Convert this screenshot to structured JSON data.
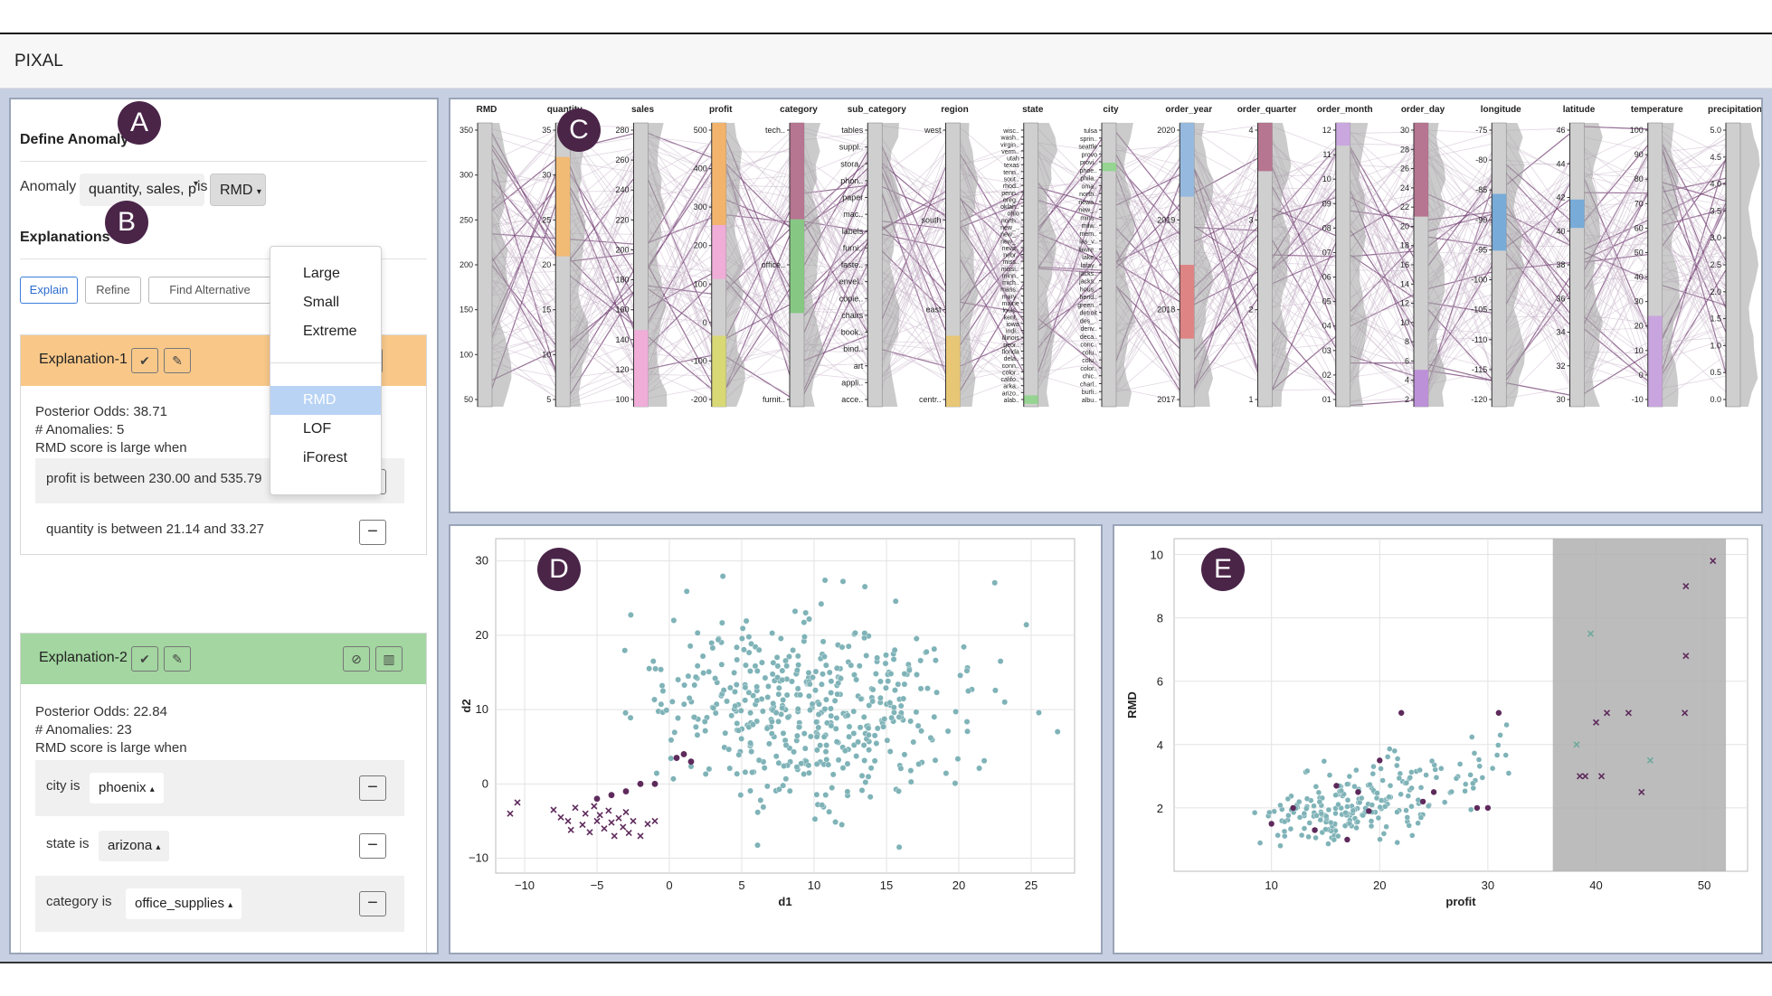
{
  "app_title": "PIXAL",
  "badges": {
    "a": "A",
    "b": "B",
    "c": "C",
    "d": "D",
    "e": "E"
  },
  "define": {
    "heading": "Define Anomaly",
    "anomaly_if_label": "Anomaly if",
    "attributes_value": "quantity, sales, p",
    "is_label": "is",
    "detector_value": "RMD",
    "menu_items_top": [
      "Large",
      "Small",
      "Extreme"
    ],
    "menu_items_bottom": [
      "RMD",
      "LOF",
      "iForest"
    ]
  },
  "explanations": {
    "heading": "Explanations",
    "explain_label": "Explain",
    "refine_label": "Refine",
    "find_alt_label": "Find Alternative",
    "cards": [
      {
        "title": "Explanation-1",
        "color": "#f9c889",
        "posterior": "Posterior Odds: 38.71",
        "anomalies": "# Anomalies: 5",
        "condition": "RMD score is large when",
        "rules": [
          "profit is between 230.00 and 535.79",
          "quantity is between 21.14 and 33.27"
        ]
      },
      {
        "title": "Explanation-2",
        "color": "#a3d6a0",
        "posterior": "Posterior Odds: 22.84",
        "anomalies": "# Anomalies: 23",
        "condition": "RMD score is large when",
        "rules": [
          {
            "label": "city is",
            "value": "phoenix"
          },
          {
            "label": "state is",
            "value": "arizona"
          },
          {
            "label": "category is",
            "value": "office_supplies"
          }
        ]
      }
    ]
  },
  "pcp": {
    "axes": [
      "RMD",
      "quantity",
      "sales",
      "profit",
      "category",
      "sub_category",
      "region",
      "state",
      "city",
      "order_year",
      "order_quarter",
      "order_month",
      "order_day",
      "longitude",
      "latitude",
      "temperature",
      "precipitation"
    ],
    "ticks": {
      "RMD": [
        "350",
        "300",
        "250",
        "200",
        "150",
        "100",
        "50"
      ],
      "quantity": [
        "35",
        "30",
        "25",
        "20",
        "15",
        "10",
        "5"
      ],
      "sales": [
        "280",
        "260",
        "240",
        "220",
        "200",
        "180",
        "160",
        "140",
        "120",
        "100"
      ],
      "profit": [
        "500",
        "400",
        "300",
        "200",
        "100",
        "0",
        "-100",
        "-200"
      ],
      "category": [
        "tech..",
        "office..",
        "furnit.."
      ],
      "sub_category": [
        "tables",
        "suppl..",
        "stora..",
        "phon..",
        "paper",
        "mac..",
        "labels",
        "furni..",
        "faste..",
        "envel..",
        "copie..",
        "chairs",
        "book..",
        "bind..",
        "art",
        "appli..",
        "acce.."
      ],
      "region": [
        "west",
        "south",
        "east",
        "centr.."
      ],
      "state": [
        "wisc..",
        "wash..",
        "virgin..",
        "verm..",
        "utah",
        "texas",
        "tenn..",
        "sout..",
        "rhod..",
        "penn..",
        "oreg..",
        "oklah..",
        "ohio",
        "north..",
        "new_..",
        "new_..",
        "new_..",
        "neva..",
        "nebr..",
        "miss..",
        "missi..",
        "minn..",
        "mich..",
        "mass..",
        "mary..",
        "maine",
        "louis..",
        "kent..",
        "iowa",
        "indi..",
        "illinois",
        "geor..",
        "florida",
        "dela..",
        "conn..",
        "color..",
        "califo..",
        "arka..",
        "arizo..",
        "alab.."
      ],
      "city": [
        "tulsa",
        "sprin..",
        "seattle",
        "provo",
        "provi..",
        "phoe..",
        "phila..",
        "oma..",
        "north..",
        "newa..",
        "new_..",
        "mins..",
        "milw..",
        "mem..",
        "las_v..",
        "lawre..",
        "lake..",
        "lafay..",
        "jacks..",
        "jacks..",
        "hous..",
        "hend..",
        "green..",
        "detroit",
        "des_..",
        "denv..",
        "deca..",
        "conc..",
        "colu..",
        "colu..",
        "color..",
        "chic..",
        "charl..",
        "burli..",
        "albu.."
      ],
      "order_year": [
        "2020",
        "2019",
        "2018",
        "2017"
      ],
      "order_quarter": [
        "4",
        "3",
        "2",
        "1"
      ],
      "order_month": [
        "12",
        "11",
        "10",
        "09",
        "08",
        "07",
        "06",
        "05",
        "04",
        "03",
        "02",
        "01"
      ],
      "order_day": [
        "30",
        "28",
        "26",
        "24",
        "22",
        "20",
        "18",
        "16",
        "14",
        "12",
        "10",
        "8",
        "6",
        "4",
        "2"
      ],
      "longitude": [
        "-75",
        "-80",
        "-85",
        "-90",
        "-95",
        "-100",
        "-105",
        "-110",
        "-115",
        "-120"
      ],
      "latitude": [
        "46",
        "44",
        "42",
        "40",
        "38",
        "36",
        "34",
        "32",
        "30"
      ],
      "temperature": [
        "100",
        "90",
        "80",
        "70",
        "60",
        "50",
        "40",
        "30",
        "20",
        "10",
        "0",
        "-10"
      ],
      "precipitation": [
        "5.0",
        "4.5",
        "4.0",
        "3.5",
        "3.0",
        "2.5",
        "2.0",
        "1.5",
        "1.0",
        "0.5",
        "0.0"
      ]
    }
  },
  "chart_data": [
    {
      "type": "scatter",
      "id": "D",
      "title": "",
      "xlabel": "d1",
      "ylabel": "d2",
      "xlim": [
        -12,
        28
      ],
      "ylim": [
        -12,
        33
      ],
      "xticks": [
        "−10",
        "−5",
        "0",
        "5",
        "10",
        "15",
        "20",
        "25"
      ],
      "yticks": [
        "30",
        "20",
        "10",
        "0",
        "−10"
      ],
      "series": [
        {
          "name": "normal",
          "color": "#7fb3b8",
          "marker": "circle",
          "description": "about 500 points centered near (10,10)"
        },
        {
          "name": "anomaly",
          "color": "#5e2a5c",
          "marker": "x",
          "points": [
            [
              -11,
              -4
            ],
            [
              -10.5,
              -2.5
            ],
            [
              -8,
              -3.5
            ],
            [
              -7.5,
              -4.5
            ],
            [
              -7,
              -5
            ],
            [
              -6.8,
              -6.2
            ],
            [
              -6.5,
              -3.2
            ],
            [
              -6,
              -5.5
            ],
            [
              -5.8,
              -4
            ],
            [
              -5.5,
              -6.5
            ],
            [
              -5.2,
              -3
            ],
            [
              -5,
              -5
            ],
            [
              -4.8,
              -4.2
            ],
            [
              -4.5,
              -6
            ],
            [
              -4.2,
              -3.6
            ],
            [
              -4,
              -5.2
            ],
            [
              -3.8,
              -7
            ],
            [
              -3.5,
              -4.6
            ],
            [
              -3.2,
              -5.8
            ],
            [
              -3,
              -3.8
            ],
            [
              -2.8,
              -6.6
            ],
            [
              -2.5,
              -5
            ],
            [
              -2,
              -7
            ],
            [
              -1.5,
              -5.4
            ],
            [
              -1,
              -5
            ]
          ]
        },
        {
          "name": "anomaly-circle",
          "color": "#5e2a5c",
          "marker": "circle",
          "points": [
            [
              -5,
              -2
            ],
            [
              -4,
              -1.5
            ],
            [
              -3,
              -1
            ],
            [
              -2,
              0
            ],
            [
              -1,
              0
            ],
            [
              0.5,
              3.5
            ],
            [
              1,
              4
            ],
            [
              1.5,
              3
            ]
          ]
        }
      ]
    },
    {
      "type": "scatter",
      "id": "E",
      "title": "",
      "xlabel": "profit",
      "ylabel": "RMD",
      "xlim": [
        1,
        54
      ],
      "ylim": [
        0,
        10.5
      ],
      "xticks": [
        "10",
        "20",
        "30",
        "40",
        "50"
      ],
      "yticks": [
        "10",
        "8",
        "6",
        "4",
        "2"
      ],
      "highlight_range": [
        36,
        52
      ],
      "series": [
        {
          "name": "normal",
          "color": "#7fb3b8",
          "marker": "circle",
          "description": "about 250 points rising from (5,1) to (35,6)"
        },
        {
          "name": "anomaly",
          "color": "#5e2a5c",
          "marker": "circle",
          "points": [
            [
              10,
              1.5
            ],
            [
              12,
              2
            ],
            [
              14,
              1.3
            ],
            [
              16,
              2.7
            ],
            [
              17,
              1
            ],
            [
              18,
              2.5
            ],
            [
              19,
              1.9
            ],
            [
              20,
              3.5
            ],
            [
              22,
              5
            ],
            [
              24,
              2.2
            ],
            [
              25,
              2.5
            ],
            [
              29,
              2
            ],
            [
              30,
              2
            ],
            [
              31,
              5
            ]
          ]
        },
        {
          "name": "selected-x",
          "color": "#5e2a5c",
          "marker": "x",
          "points": [
            [
              50.8,
              9.8
            ],
            [
              48.3,
              9
            ],
            [
              48.3,
              6.8
            ],
            [
              48.2,
              5
            ],
            [
              41,
              5
            ],
            [
              43,
              5
            ],
            [
              40,
              4.7
            ],
            [
              38.5,
              3
            ],
            [
              39,
              3
            ],
            [
              40.5,
              3
            ],
            [
              44.2,
              2.5
            ]
          ]
        },
        {
          "name": "selected-green-x",
          "color": "#6fa99c",
          "marker": "x",
          "points": [
            [
              39.5,
              7.5
            ],
            [
              38.2,
              4
            ],
            [
              45,
              3.5
            ]
          ]
        }
      ]
    }
  ]
}
